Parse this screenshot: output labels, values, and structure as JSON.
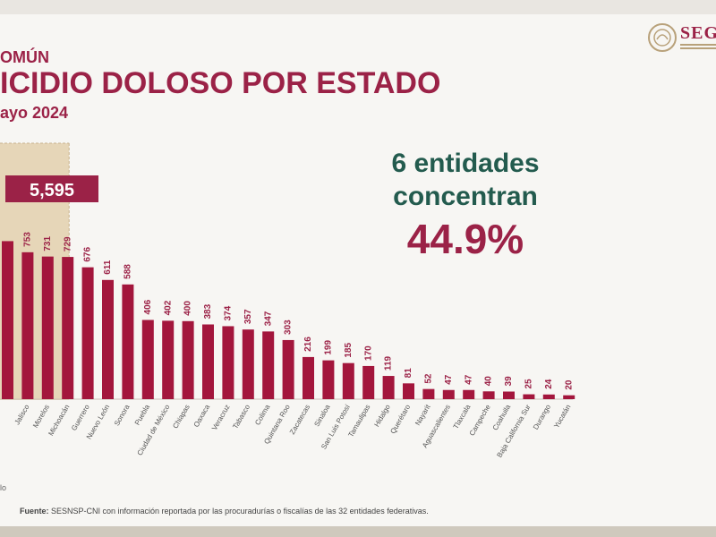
{
  "header": {
    "kicker": "OMÚN",
    "title": "ICIDIO DOLOSO POR ESTADO",
    "subtitle": "ayo 2024",
    "logo_text": "SEG"
  },
  "callout": {
    "line1": "6 entidades",
    "line2": "concentran",
    "value": "44.9%",
    "color_line": "#235b4e",
    "color_value": "#9b2247"
  },
  "highlight": {
    "label": "5,595",
    "fill": "#e6d6b8",
    "border": "#c9b38f",
    "badge_color": "#9b2247"
  },
  "note": "lo",
  "footer": {
    "label": "Fuente:",
    "text": " SESNSP-CNI con información reportada por las procuradurías o fiscalías de las 32 entidades federativas."
  },
  "chart_data": {
    "type": "bar",
    "bar_color": "#a3163c",
    "categories": [
      "",
      "Jalisco",
      "Morelos",
      "Michoacán",
      "Guerrero",
      "Nuevo León",
      "Sonora",
      "Puebla",
      "Ciudad de México",
      "Chiapas",
      "Oaxaca",
      "Veracruz",
      "Tabasco",
      "Colima",
      "Quintana Roo",
      "Zacatecas",
      "Sinaloa",
      "San Luis Potosí",
      "Tamaulipas",
      "Hidalgo",
      "Querétaro",
      "Nayarit",
      "Aguascalientes",
      "Tlaxcala",
      "Campeche",
      "Coahuila",
      "Baja California Sur",
      "Durango",
      "Yucatán"
    ],
    "values": [
      810,
      753,
      731,
      729,
      676,
      611,
      588,
      406,
      402,
      400,
      383,
      374,
      357,
      347,
      303,
      216,
      199,
      185,
      170,
      119,
      81,
      52,
      47,
      47,
      40,
      39,
      25,
      24,
      20
    ],
    "value_labels": [
      "",
      "753",
      "731",
      "729",
      "676",
      "611",
      "588",
      "406",
      "402",
      "400",
      "383",
      "374",
      "357",
      "347",
      "303",
      "216",
      "199",
      "185",
      "170",
      "119",
      "81",
      "52",
      "47",
      "47",
      "40",
      "39",
      "25",
      "24",
      "20"
    ],
    "highlighted_count": 3,
    "title": "ICIDIO DOLOSO POR ESTADO",
    "xlabel": "",
    "ylabel": "",
    "ylim": [
      0,
      900
    ],
    "grid": false,
    "legend": "none"
  }
}
